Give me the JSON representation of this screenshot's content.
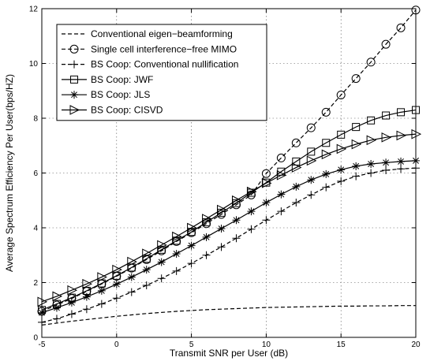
{
  "chart_data": {
    "type": "line",
    "title": "",
    "xlabel": "Transmit SNR per User (dB)",
    "ylabel": "Average Spectrum Efficiency Per User(bps/HZ)",
    "xlim": [
      -5,
      20
    ],
    "ylim": [
      0,
      12
    ],
    "x_ticks": [
      -5,
      0,
      5,
      10,
      15,
      20
    ],
    "y_ticks": [
      0,
      2,
      4,
      6,
      8,
      10,
      12
    ],
    "grid": "dotted",
    "legend_position": "top-left",
    "x": [
      -5,
      -4,
      -3,
      -2,
      -1,
      0,
      1,
      2,
      3,
      4,
      5,
      6,
      7,
      8,
      9,
      10,
      11,
      12,
      13,
      14,
      15,
      16,
      17,
      18,
      19,
      20
    ],
    "series": [
      {
        "name": "Conventional eigen−beamforming",
        "marker": "none",
        "dash": "dashed",
        "values": [
          0.45,
          0.52,
          0.59,
          0.65,
          0.71,
          0.77,
          0.82,
          0.87,
          0.91,
          0.95,
          0.98,
          1.01,
          1.03,
          1.05,
          1.07,
          1.09,
          1.1,
          1.11,
          1.12,
          1.13,
          1.14,
          1.14,
          1.15,
          1.15,
          1.16,
          1.16
        ]
      },
      {
        "name": "Single cell interference−free MIMO",
        "marker": "circle",
        "dash": "dashed",
        "values": [
          0.95,
          1.18,
          1.42,
          1.68,
          1.95,
          2.23,
          2.53,
          2.84,
          3.16,
          3.5,
          3.82,
          4.15,
          4.49,
          4.84,
          5.2,
          5.98,
          6.55,
          7.1,
          7.65,
          8.22,
          8.85,
          9.45,
          10.05,
          10.7,
          11.3,
          11.95
        ]
      },
      {
        "name": "BS Coop: Conventional nullification",
        "marker": "plus",
        "dash": "dashed",
        "values": [
          0.55,
          0.68,
          0.85,
          1.03,
          1.22,
          1.43,
          1.65,
          1.9,
          2.15,
          2.42,
          2.7,
          3.0,
          3.3,
          3.62,
          3.95,
          4.28,
          4.6,
          4.92,
          5.2,
          5.48,
          5.7,
          5.88,
          6.0,
          6.1,
          6.15,
          6.18
        ]
      },
      {
        "name": "BS Coop: JWF",
        "marker": "square",
        "dash": "solid",
        "values": [
          1.0,
          1.22,
          1.45,
          1.7,
          1.97,
          2.25,
          2.55,
          2.87,
          3.2,
          3.53,
          3.85,
          4.2,
          4.55,
          4.9,
          5.28,
          5.65,
          6.05,
          6.42,
          6.78,
          7.1,
          7.4,
          7.68,
          7.92,
          8.1,
          8.22,
          8.3
        ]
      },
      {
        "name": "BS Coop: JLS",
        "marker": "asterisk",
        "dash": "solid",
        "values": [
          0.9,
          1.08,
          1.27,
          1.48,
          1.7,
          1.94,
          2.2,
          2.47,
          2.75,
          3.05,
          3.35,
          3.66,
          3.97,
          4.28,
          4.6,
          4.92,
          5.22,
          5.5,
          5.75,
          5.96,
          6.12,
          6.25,
          6.33,
          6.38,
          6.42,
          6.45
        ]
      },
      {
        "name": "BS Coop: CISVD",
        "marker": "triangle-right",
        "dash": "solid",
        "values": [
          1.3,
          1.5,
          1.72,
          1.95,
          2.2,
          2.47,
          2.76,
          3.06,
          3.37,
          3.68,
          4.0,
          4.33,
          4.66,
          5.0,
          5.32,
          5.63,
          5.92,
          6.2,
          6.45,
          6.68,
          6.88,
          7.05,
          7.2,
          7.3,
          7.37,
          7.42
        ]
      }
    ]
  }
}
